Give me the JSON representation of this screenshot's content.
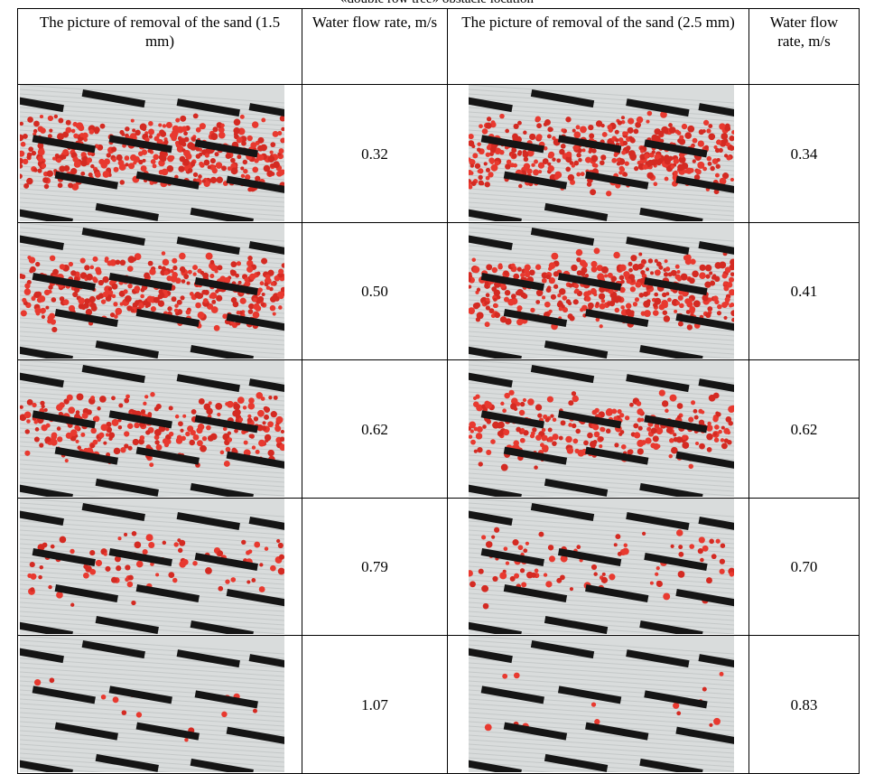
{
  "caption": "«double row tree» obstacle location",
  "table": {
    "header": [
      "The picture of removal of the sand (1.5 mm)",
      "Water flow rate, m/s",
      "The picture of removal of the sand (2.5 mm)",
      "Water flow rate, m/s"
    ],
    "rows": [
      [
        "0.32",
        "0.34"
      ],
      [
        "0.50",
        "0.41"
      ],
      [
        "0.62",
        "0.62"
      ],
      [
        "0.79",
        "0.70"
      ],
      [
        "1.07",
        "0.83"
      ]
    ]
  }
}
